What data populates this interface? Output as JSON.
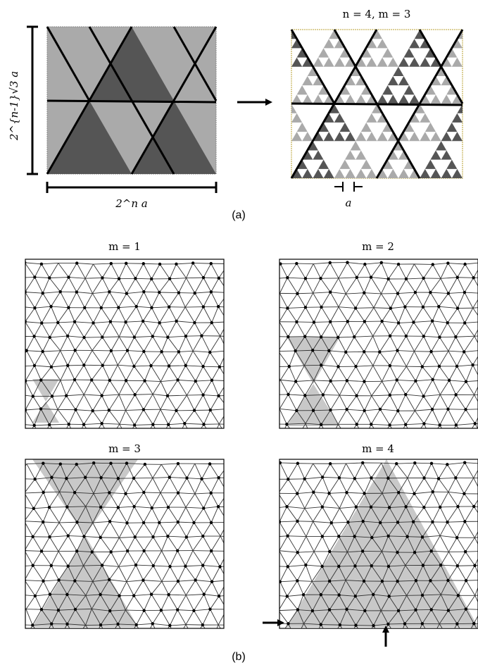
{
  "part_a": {
    "caption": "(a)",
    "left_panel": {
      "height_label": "2^{n-1}√3 a",
      "width_label": "2^n a"
    },
    "right_panel": {
      "title": "n = 4, m = 3",
      "scale_label": "a"
    }
  },
  "part_b": {
    "caption": "(b)",
    "panels": [
      {
        "title": "m = 1"
      },
      {
        "title": "m = 2"
      },
      {
        "title": "m = 3"
      },
      {
        "title": "m = 4"
      }
    ]
  },
  "colors": {
    "dark_gray": "#555555",
    "light_gray": "#aaaaaa",
    "shade_gray": "#c8c8c8",
    "line": "#000000"
  }
}
